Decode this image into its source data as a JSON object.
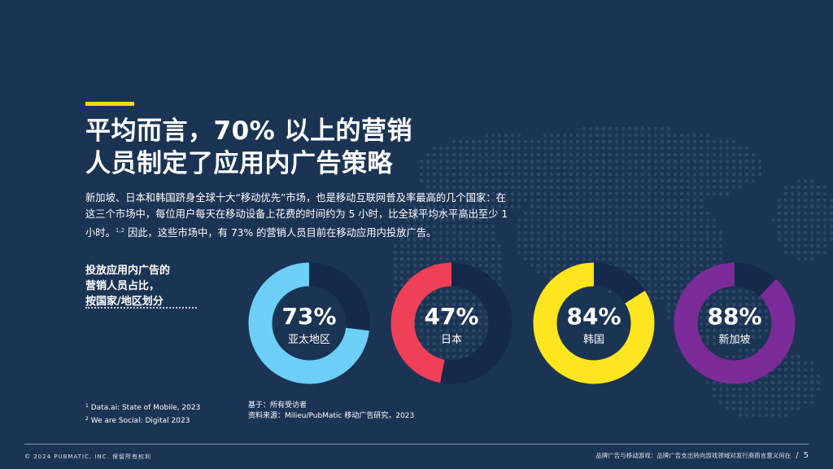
{
  "heading": {
    "line1": "平均而言，70% 以上的营销",
    "line2": "人员制定了应用内广告策略"
  },
  "body": {
    "text": "新加坡、日本和韩国跻身全球十大“移动优先”市场，也是移动互联网普及率最高的几个国家：在这三个市场中，每位用户每天在移动设备上花费的时间约为 5 小时，比全球平均水平高出至少 1 小时。",
    "sup": "1,2",
    "text2": " 因此，这些市场中，有 73% 的营销人员目前在移动应用内投放广告。"
  },
  "chart_label": {
    "line1": "投放应用内广告的",
    "line2": "营销人员占比，",
    "line3": "按国家/地区划分"
  },
  "chart_data": {
    "type": "pie",
    "variant": "donut",
    "unit": "%",
    "categories": [
      "亚太地区",
      "日本",
      "韩国",
      "新加坡"
    ],
    "values": [
      73,
      47,
      84,
      88
    ],
    "labels": [
      "73%",
      "47%",
      "84%",
      "88%"
    ],
    "colors": [
      "#6dcff6",
      "#ee4158",
      "#fde51f",
      "#7b2c99"
    ],
    "remainder_color": "#15294a"
  },
  "footnotes": [
    {
      "num": "1",
      "text": "Data.ai: State of Mobile, 2023"
    },
    {
      "num": "2",
      "text": "We are Social: Digital 2023"
    }
  ],
  "sources": {
    "base": "基于：所有受访者",
    "source": "资料来源：Milieu/PubMatic 移动广告研究，2023"
  },
  "footer": {
    "copyright": "© 2024 PUBMATIC, INC. 保留所有权利",
    "doc_title": "品牌广告与移动游戏：品牌广告支出转向游戏领域对发行商而言意义何在",
    "separator": "/",
    "page_number": "5"
  },
  "colors": {
    "background": "#1b3454",
    "accent": "#f5d90a",
    "map_dots": "#2f4a6a"
  }
}
